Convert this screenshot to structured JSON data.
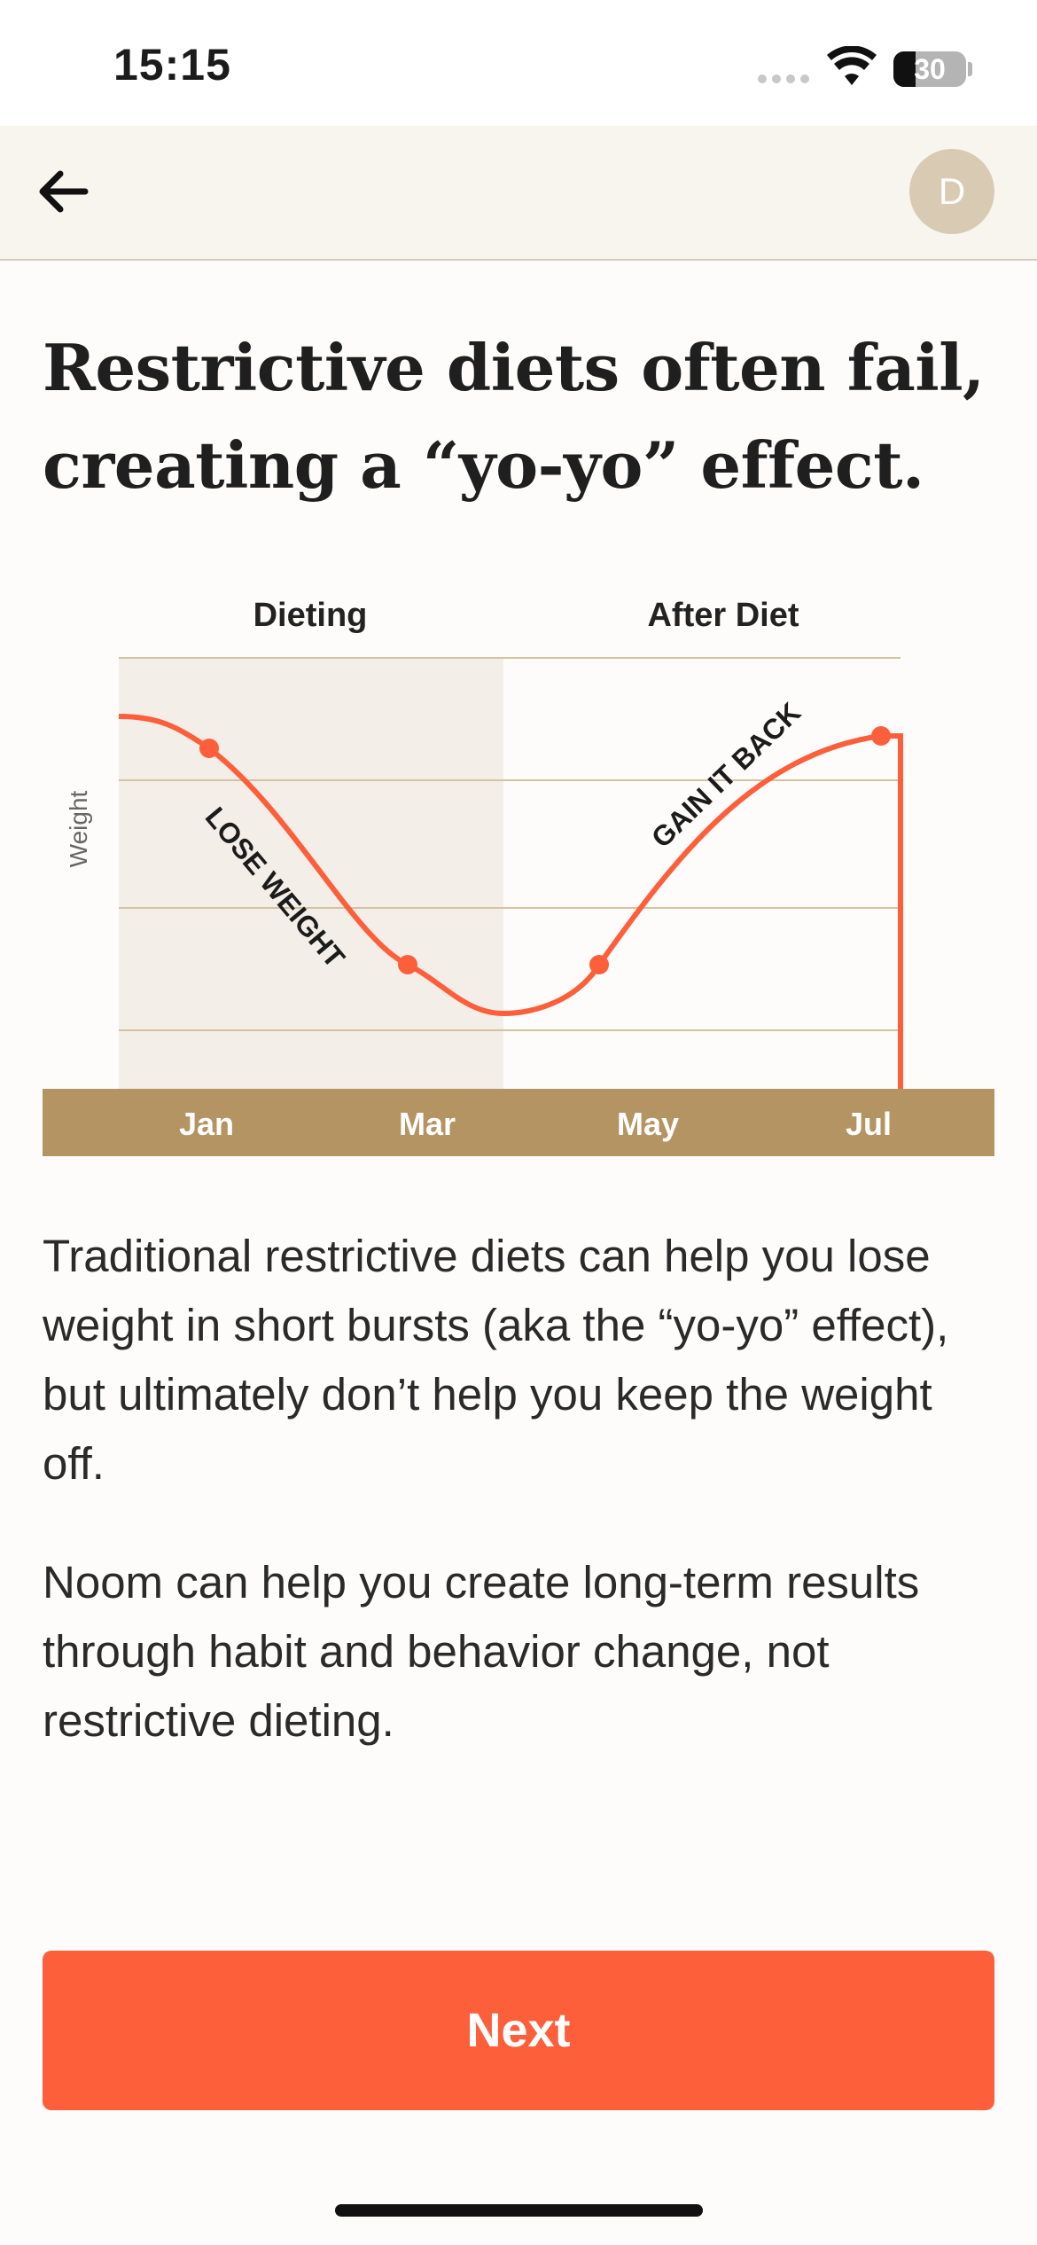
{
  "status_bar": {
    "time": "15:15",
    "battery": "30",
    "icons": [
      "cellular-signal-icon",
      "wifi-icon",
      "battery-icon"
    ]
  },
  "nav": {
    "back_icon": "arrow-left-icon",
    "avatar_initial": "D"
  },
  "headline": "Restrictive diets often fail, creating a “yo-yo” effect.",
  "chart_data": {
    "type": "line",
    "title": "",
    "ylabel": "Weight",
    "xlabel": "",
    "phases": [
      "Dieting",
      "After Diet"
    ],
    "categories": [
      "Jan",
      "Mar",
      "May",
      "Jul"
    ],
    "annotations": [
      "LOSE WEIGHT",
      "GAIN IT BACK"
    ],
    "series": [
      {
        "x": [
          "Jan",
          "Mar",
          "May",
          "Jul"
        ],
        "values": [
          0.85,
          0.3,
          0.3,
          0.85
        ]
      }
    ],
    "grid": true,
    "colors": {
      "line": "#fd5f3b",
      "dieting_band": "#f3eee7",
      "axis_band": "#b39462",
      "grid": "#d4c2a2"
    }
  },
  "paragraphs": [
    "Traditional restrictive diets can help you lose weight in short bursts (aka the “yo-yo” effect), but ultimately don’t help you keep the weight off.",
    "Noom can help you create long-term results through habit and behavior change, not restrictive dieting."
  ],
  "next_button": {
    "label": "Next",
    "color": "#fd5f3b"
  }
}
